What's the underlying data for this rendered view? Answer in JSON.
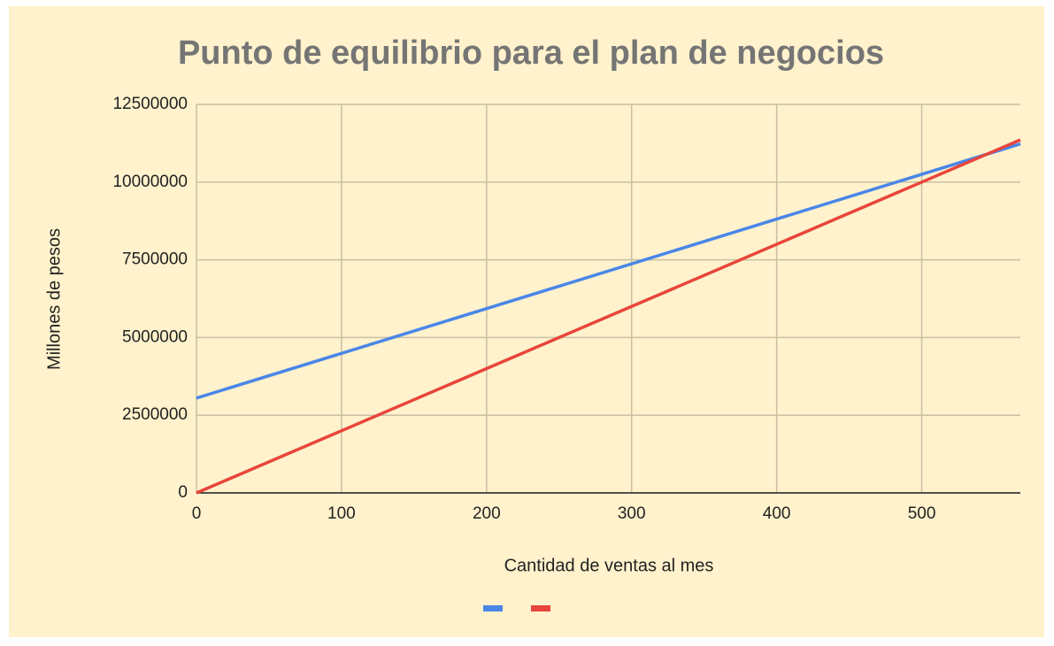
{
  "chart_data": {
    "type": "line",
    "title": "Punto de equilibrio para el plan de negocios",
    "x_label": "Cantidad de ventas al mes",
    "y_label": "Millones de pesos",
    "x": [
      0,
      568
    ],
    "series": [
      {
        "color": "#4a86e8",
        "values": [
          3050000,
          11230000
        ]
      },
      {
        "color": "#e8453c",
        "values": [
          0,
          11360000
        ]
      }
    ],
    "xlim": [
      0,
      568
    ],
    "xticks": [
      0,
      100,
      200,
      300,
      400,
      500
    ],
    "ylim": [
      0,
      12500000
    ],
    "yticks": [
      0,
      2500000,
      5000000,
      7500000,
      10000000,
      12500000
    ],
    "grid": true,
    "legend": "bottom"
  }
}
